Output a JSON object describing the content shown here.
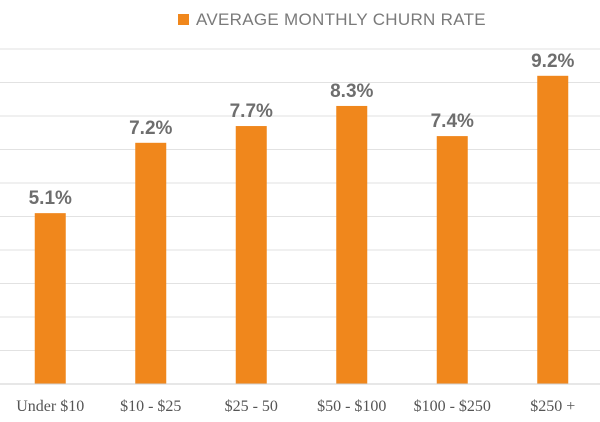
{
  "chart_data": {
    "type": "bar",
    "title": "",
    "xlabel": "",
    "ylabel": "",
    "ylim": [
      0,
      10
    ],
    "grid": true,
    "legend": "top-center",
    "categories": [
      "Under $10",
      "$10 - $25",
      "$25 - 50",
      "$50 - $100",
      "$100 - $250",
      "$250 +"
    ],
    "series": [
      {
        "name": "AVERAGE MONTHLY CHURN RATE",
        "values": [
          5.1,
          7.2,
          7.7,
          8.3,
          7.4,
          9.2
        ],
        "value_labels": [
          "5.1%",
          "7.2%",
          "7.7%",
          "8.3%",
          "7.4%",
          "9.2%"
        ],
        "color": "#f0871c"
      }
    ]
  }
}
